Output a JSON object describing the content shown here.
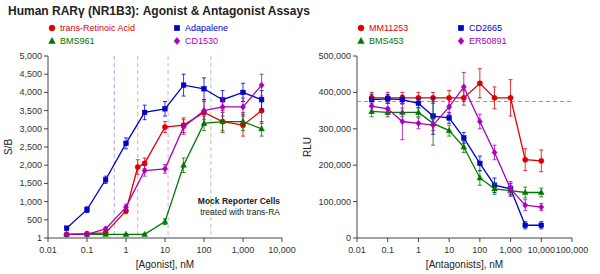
{
  "chart_data": [
    {
      "type": "line",
      "title": "Human RARγ (NR1B3): Agonist & Antagonist Assays",
      "xlabel": "[Agonist], nM",
      "ylabel": "S/B",
      "log": "x",
      "grid": false,
      "legend": "top",
      "annotations": [
        "Mock Reporter Cells",
        "treated with trans-RA"
      ],
      "xlim": [
        0.01,
        10000
      ],
      "ylim": [
        1,
        5000
      ],
      "xticks": [
        0.01,
        0.1,
        1,
        10,
        100,
        {
          "value": 1000,
          "label": "1,000"
        },
        {
          "value": 10000,
          "label": "10,000"
        }
      ],
      "yticks": [
        1,
        500,
        {
          "value": 1000,
          "label": "1,000"
        },
        {
          "value": 1500,
          "label": "1,500"
        },
        {
          "value": 2000,
          "label": "2,000"
        },
        {
          "value": 2500,
          "label": "2,500"
        },
        {
          "value": 3000,
          "label": "3,000"
        },
        {
          "value": 3500,
          "label": "3,500"
        },
        {
          "value": 4000,
          "label": "4,000"
        },
        {
          "value": 4500,
          "label": "4,500"
        },
        {
          "value": 5000,
          "label": "5,000"
        }
      ],
      "series": [
        {
          "name": "trans-Retinoic Acid",
          "color": "#dd0000",
          "marker": "circle",
          "x": [
            0.03,
            0.1,
            0.3,
            1.0,
            2.0,
            3.0,
            10.0,
            30.0,
            100.0,
            300.0,
            1000.0,
            3000.0
          ],
          "values": [
            100,
            120,
            140,
            750,
            1950,
            2050,
            3050,
            3100,
            3450,
            3200,
            3100,
            3500
          ],
          "yerr": [
            30,
            30,
            30,
            80,
            200,
            150,
            150,
            200,
            350,
            300,
            300,
            350
          ],
          "ec50": 2.0
        },
        {
          "name": "Adapalene",
          "color": "#0000cc",
          "marker": "square",
          "x": [
            0.03,
            0.1,
            0.3,
            1.0,
            3.0,
            10.0,
            30.0,
            100.0,
            300.0,
            1000.0,
            3000.0
          ],
          "values": [
            270,
            780,
            1600,
            2600,
            3450,
            3550,
            4200,
            4100,
            3800,
            4000,
            3800
          ],
          "yerr": [
            50,
            80,
            100,
            150,
            200,
            200,
            300,
            300,
            250,
            250,
            250
          ],
          "ec50": 0.5
        },
        {
          "name": "BMS961",
          "color": "#007700",
          "marker": "triangle",
          "x": [
            0.03,
            0.1,
            0.3,
            1.0,
            3.0,
            10.0,
            30.0,
            100.0,
            300.0,
            1000.0,
            3000.0
          ],
          "values": [
            100,
            100,
            100,
            100,
            100,
            450,
            2000,
            3150,
            3200,
            3200,
            3000
          ],
          "yerr": [
            20,
            20,
            20,
            20,
            20,
            80,
            200,
            200,
            250,
            250,
            200
          ],
          "ec50": 150.0
        },
        {
          "name": "CD1530",
          "color": "#aa00bb",
          "marker": "diamond",
          "x": [
            0.03,
            0.1,
            0.3,
            1.0,
            3.0,
            10.0,
            30.0,
            100.0,
            300.0,
            1000.0,
            3000.0
          ],
          "values": [
            100,
            100,
            250,
            850,
            1850,
            1900,
            3050,
            3500,
            3600,
            3600,
            4200
          ],
          "yerr": [
            20,
            20,
            50,
            80,
            150,
            120,
            200,
            250,
            250,
            250,
            300
          ],
          "ec50": 12.0
        }
      ]
    },
    {
      "type": "line",
      "xlabel": "[Antagonists], nM",
      "ylabel": "RLU",
      "log": "x",
      "grid": false,
      "legend": "top",
      "xlim": [
        0.01,
        100000
      ],
      "ylim": [
        0,
        500000
      ],
      "xticks": [
        0.01,
        0.1,
        1,
        10,
        100,
        {
          "value": 1000,
          "label": "1,000"
        },
        {
          "value": 10000,
          "label": "10,000"
        },
        {
          "value": 100000,
          "label": "100,000"
        }
      ],
      "yticks": [
        0,
        {
          "value": 100000,
          "label": "100,000"
        },
        {
          "value": 200000,
          "label": "200,000"
        },
        {
          "value": 300000,
          "label": "300,000"
        },
        {
          "value": 400000,
          "label": "400,000"
        },
        {
          "value": 500000,
          "label": "500,000"
        }
      ],
      "reference_line": 375000,
      "series": [
        {
          "name": "MM11253",
          "color": "#dd0000",
          "marker": "circle",
          "x": [
            0.03,
            0.1,
            0.3,
            1.0,
            3.0,
            10.0,
            30.0,
            100.0,
            300.0,
            1000.0,
            3000.0,
            10000.0
          ],
          "values": [
            385000,
            385000,
            385000,
            385000,
            385000,
            385000,
            385000,
            425000,
            385000,
            385000,
            215000,
            212000
          ],
          "yerr": [
            15000,
            15000,
            15000,
            15000,
            15000,
            20000,
            20000,
            40000,
            30000,
            50000,
            30000,
            30000
          ]
        },
        {
          "name": "CD2665",
          "color": "#0000cc",
          "marker": "square",
          "x": [
            0.03,
            0.1,
            0.3,
            1.0,
            3.0,
            10.0,
            30.0,
            100.0,
            300.0,
            1000.0,
            3000.0,
            10000.0
          ],
          "values": [
            380000,
            382000,
            380000,
            370000,
            335000,
            330000,
            275000,
            205000,
            145000,
            135000,
            35000,
            35000
          ],
          "yerr": [
            15000,
            12000,
            12000,
            12000,
            50000,
            15000,
            15000,
            20000,
            20000,
            15000,
            10000,
            10000
          ]
        },
        {
          "name": "BMS453",
          "color": "#007700",
          "marker": "triangle",
          "x": [
            0.03,
            0.1,
            0.3,
            1.0,
            3.0,
            10.0,
            30.0,
            100.0,
            300.0,
            1000.0,
            3000.0,
            10000.0
          ],
          "values": [
            348000,
            345000,
            345000,
            345000,
            315000,
            295000,
            250000,
            165000,
            135000,
            130000,
            125000,
            125000
          ],
          "yerr": [
            15000,
            12000,
            12000,
            12000,
            60000,
            15000,
            15000,
            20000,
            15000,
            15000,
            15000,
            12000
          ]
        },
        {
          "name": "ER50891",
          "color": "#aa00bb",
          "marker": "diamond",
          "x": [
            0.03,
            0.1,
            0.3,
            1.0,
            3.0,
            10.0,
            30.0,
            100.0,
            300.0,
            1000.0,
            3000.0,
            10000.0
          ],
          "values": [
            362000,
            355000,
            320000,
            315000,
            310000,
            360000,
            415000,
            320000,
            235000,
            135000,
            90000,
            85000
          ],
          "yerr": [
            20000,
            15000,
            50000,
            15000,
            15000,
            20000,
            40000,
            20000,
            20000,
            20000,
            15000,
            10000
          ]
        }
      ]
    }
  ]
}
